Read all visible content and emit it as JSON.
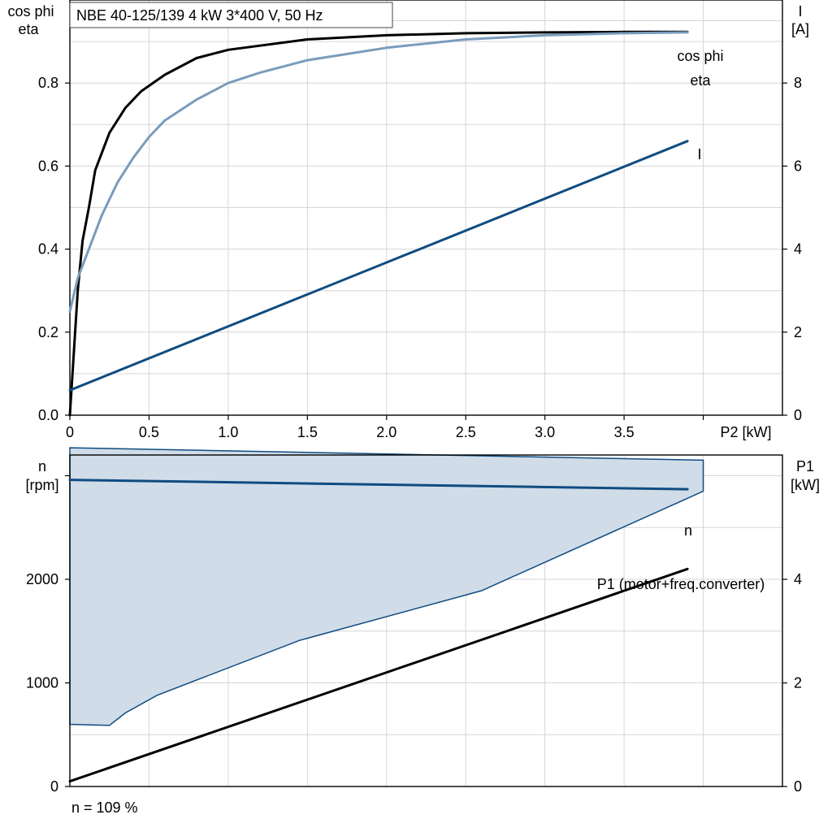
{
  "header": {
    "title": "NBE 40-125/139   4 kW   3*400 V, 50 Hz"
  },
  "footer": {
    "note": "n = 109 %"
  },
  "colors": {
    "eta": "#000000",
    "cos_phi": "#7a9cbc",
    "current": "#0f4c81",
    "speed": "#0f4c81",
    "p1": "#000000",
    "envelope_fill": "#d0dce8",
    "envelope_edge": "#0f4c81"
  },
  "chart_data": [
    {
      "type": "line",
      "name": "top-chart",
      "xlabel": "P2 [kW]",
      "ylabel_left": [
        "cos phi",
        "eta"
      ],
      "ylabel_right": [
        "I",
        "[A]"
      ],
      "xlim": [
        0,
        4.5
      ],
      "ylim_left": [
        0,
        1.0
      ],
      "ylim_right": [
        0,
        10
      ],
      "xticks": [
        0,
        0.5,
        1.0,
        1.5,
        2.0,
        2.5,
        3.0,
        3.5
      ],
      "xtick_labels": [
        "0",
        "0.5",
        "1.0",
        "1.5",
        "2.0",
        "2.5",
        "3.0",
        "3.5"
      ],
      "yticks_left": [
        0,
        0.2,
        0.4,
        0.6,
        0.8
      ],
      "ytick_labels_left": [
        "0.0",
        "0.2",
        "0.4",
        "0.6",
        "0.8"
      ],
      "yticks_right": [
        0,
        2,
        4,
        6,
        8
      ],
      "ytick_labels_right": [
        "0",
        "2",
        "4",
        "6",
        "8"
      ],
      "grid": true,
      "series": [
        {
          "name": "eta",
          "axis": "left",
          "x": [
            0,
            0.05,
            0.08,
            0.12,
            0.16,
            0.25,
            0.35,
            0.45,
            0.6,
            0.8,
            1.0,
            1.5,
            2.0,
            2.5,
            3.0,
            3.5,
            3.9
          ],
          "y": [
            0,
            0.3,
            0.42,
            0.5,
            0.59,
            0.68,
            0.74,
            0.78,
            0.82,
            0.86,
            0.88,
            0.905,
            0.915,
            0.92,
            0.922,
            0.923,
            0.923
          ]
        },
        {
          "name": "cos phi",
          "axis": "left",
          "x": [
            0,
            0.05,
            0.1,
            0.2,
            0.3,
            0.4,
            0.5,
            0.6,
            0.8,
            1.0,
            1.2,
            1.5,
            2.0,
            2.5,
            3.0,
            3.5,
            3.9
          ],
          "y": [
            0.25,
            0.33,
            0.38,
            0.48,
            0.56,
            0.62,
            0.67,
            0.71,
            0.76,
            0.8,
            0.825,
            0.855,
            0.885,
            0.905,
            0.915,
            0.92,
            0.922
          ]
        },
        {
          "name": "I",
          "axis": "right",
          "x": [
            0,
            3.9
          ],
          "y": [
            0.6,
            6.6
          ]
        }
      ],
      "annotations": [
        "cos phi",
        "eta",
        "I"
      ]
    },
    {
      "type": "area",
      "name": "bottom-chart",
      "ylabel_left": [
        "n",
        "[rpm]"
      ],
      "ylabel_right": [
        "P1",
        "[kW]"
      ],
      "xlim": [
        0,
        4.5
      ],
      "ylim_left": [
        0,
        3200
      ],
      "ylim_right": [
        0,
        6.4
      ],
      "yticks_left": [
        0,
        1000,
        2000
      ],
      "ytick_labels_left": [
        "0",
        "1000",
        "2000"
      ],
      "yticks_right": [
        0,
        2,
        4
      ],
      "ytick_labels_right": [
        "0",
        "2",
        "4"
      ],
      "grid": true,
      "envelope": {
        "upper": {
          "x": [
            0,
            4.0
          ],
          "y": [
            3270,
            3150
          ]
        },
        "lower": {
          "x": [
            0,
            0.25,
            0.35,
            0.55,
            1.45,
            2.6,
            4.0
          ],
          "y": [
            600,
            590,
            710,
            880,
            1410,
            1890,
            2850
          ]
        },
        "right_edge": {
          "x": 4.0,
          "y": [
            2850,
            3150
          ]
        }
      },
      "series": [
        {
          "name": "n",
          "axis": "left",
          "x": [
            0,
            3.9
          ],
          "y": [
            2960,
            2870
          ]
        },
        {
          "name": "P1 (motor+freq.converter)",
          "axis": "right",
          "x": [
            0,
            3.9
          ],
          "y": [
            0.1,
            4.2
          ]
        }
      ],
      "annotations": [
        "n",
        "P1 (motor+freq.converter)"
      ]
    }
  ]
}
